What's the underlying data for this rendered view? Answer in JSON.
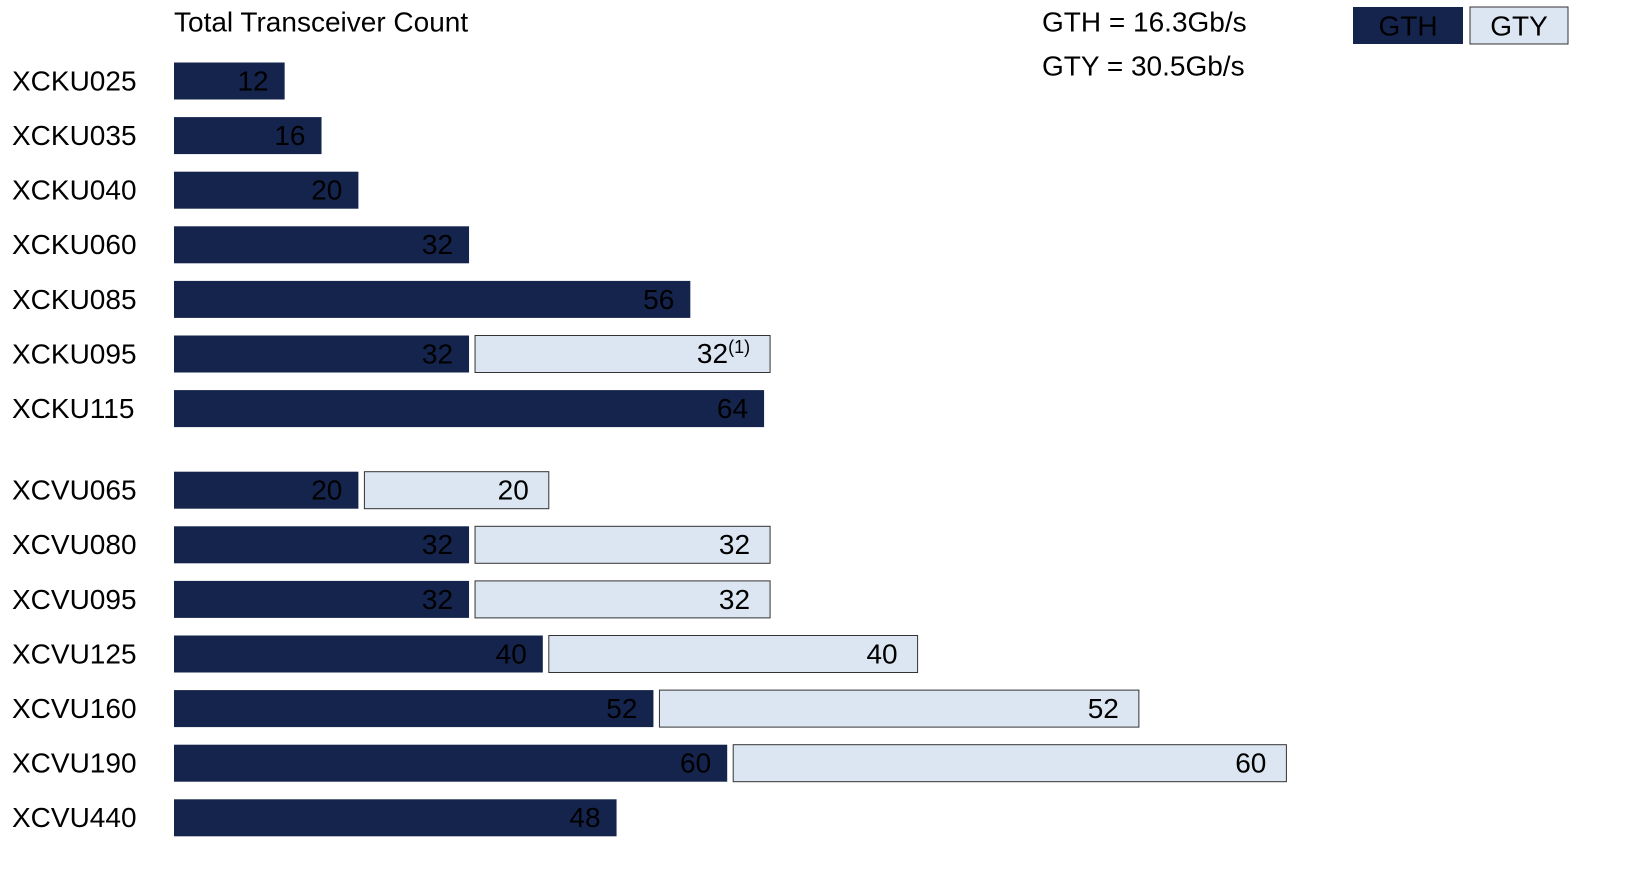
{
  "chart_data": {
    "type": "stacked-bar-horizontal",
    "title": "Total Transceiver Count",
    "annotations": [
      "GTH = 16.3Gb/s",
      "GTY = 30.5Gb/s"
    ],
    "categories": [
      "XCKU025",
      "XCKU035",
      "XCKU040",
      "XCKU060",
      "XCKU085",
      "XCKU095",
      "XCKU115",
      "XCVU065",
      "XCVU080",
      "XCVU095",
      "XCVU125",
      "XCVU160",
      "XCVU190",
      "XCVU440"
    ],
    "series": [
      {
        "name": "GTH",
        "color": "#15244d",
        "values": [
          12,
          16,
          20,
          32,
          56,
          32,
          64,
          20,
          32,
          32,
          40,
          52,
          60,
          48
        ]
      },
      {
        "name": "GTY",
        "color": "#dce6f2",
        "values": [
          null,
          null,
          null,
          null,
          null,
          32,
          null,
          20,
          32,
          32,
          40,
          52,
          60,
          null
        ],
        "value_labels": [
          null,
          null,
          null,
          null,
          null,
          "32(1)",
          null,
          "20",
          "32",
          "32",
          "40",
          "52",
          "60",
          null
        ]
      }
    ],
    "xlim": [
      0,
      150
    ],
    "legend": "top-right"
  }
}
